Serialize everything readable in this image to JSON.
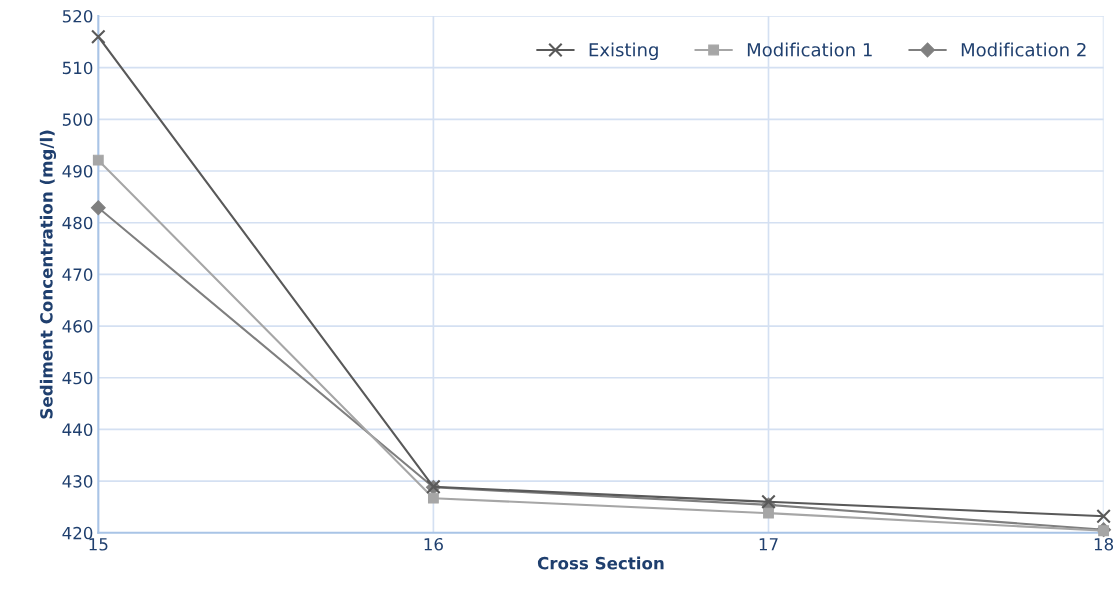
{
  "chart_data": {
    "type": "line",
    "xlabel": "Cross Section",
    "ylabel": "Sediment Concentration (mg/l)",
    "x": [
      15,
      16,
      17,
      18
    ],
    "series": [
      {
        "name": "Existing",
        "color": "#595959",
        "marker": "cross",
        "values": [
          516,
          428.9,
          426,
          423.2
        ]
      },
      {
        "name": "Modification 1",
        "color": "#a6a6a6",
        "marker": "square",
        "values": [
          492.1,
          426.7,
          423.8,
          420.4
        ]
      },
      {
        "name": "Modification 2",
        "color": "#7f7f7f",
        "marker": "diamond",
        "values": [
          482.9,
          428.8,
          425.4,
          420.6
        ]
      }
    ],
    "xlim": [
      15,
      18
    ],
    "xticks": [
      15,
      16,
      17,
      18
    ],
    "ylim": [
      420,
      520
    ],
    "yticks": [
      420,
      430,
      440,
      450,
      460,
      470,
      480,
      490,
      500,
      510,
      520
    ],
    "grid": true,
    "legend": "top right",
    "line_style": "solid"
  }
}
